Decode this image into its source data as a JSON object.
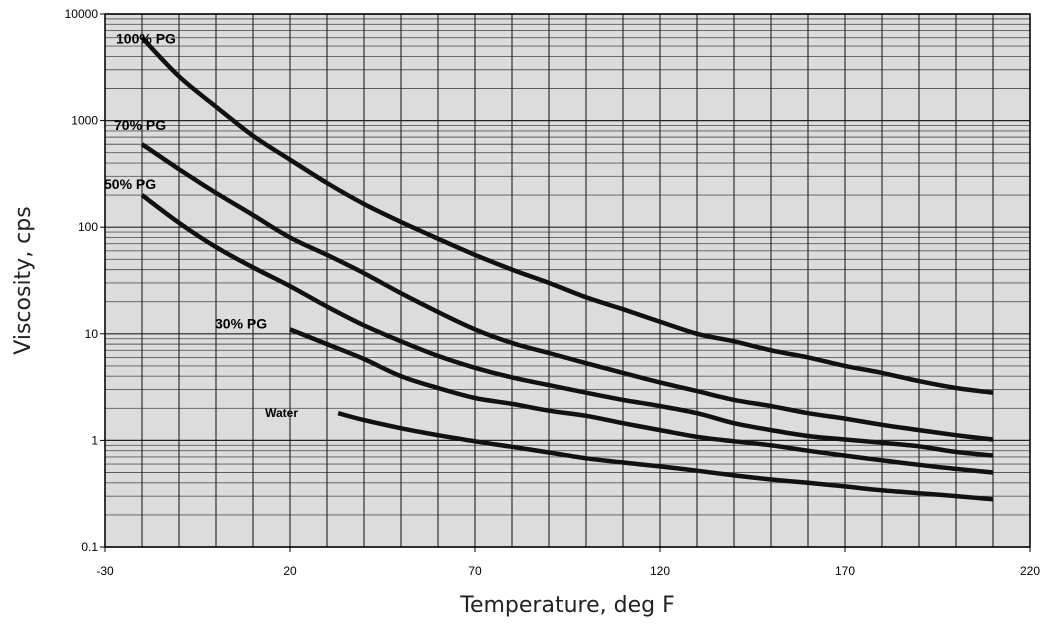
{
  "chart_data": {
    "type": "line",
    "xlabel": "Temperature, deg F",
    "ylabel": "Viscosity, cps",
    "xlim": [
      -30,
      220
    ],
    "ylim": [
      0.1,
      10000
    ],
    "y_scale": "log",
    "grid": true,
    "plot_background": "#dcdcdc",
    "x_tick_labels": [
      "-30",
      "20",
      "70",
      "120",
      "170",
      "220"
    ],
    "x_ticks": [
      -30,
      20,
      70,
      120,
      170,
      220
    ],
    "y_tick_labels": [
      "0.1",
      "1",
      "10",
      "100",
      "1000",
      "10000"
    ],
    "y_ticks": [
      0.1,
      1,
      10,
      100,
      1000,
      10000
    ],
    "series": [
      {
        "name": "100% PG",
        "x": [
          -20,
          -10,
          0,
          10,
          20,
          30,
          40,
          50,
          60,
          70,
          80,
          90,
          100,
          110,
          120,
          130,
          140,
          150,
          160,
          170,
          180,
          190,
          200,
          210
        ],
        "values": [
          6000,
          2600,
          1350,
          720,
          430,
          260,
          165,
          112,
          78,
          55,
          40,
          30,
          22,
          17,
          13,
          10,
          8.5,
          7,
          6,
          5,
          4.3,
          3.6,
          3.1,
          2.8
        ]
      },
      {
        "name": "70% PG",
        "x": [
          -20,
          -10,
          0,
          10,
          20,
          30,
          40,
          50,
          60,
          70,
          80,
          90,
          100,
          110,
          120,
          130,
          140,
          150,
          160,
          170,
          180,
          190,
          200,
          210
        ],
        "values": [
          600,
          350,
          210,
          130,
          80,
          55,
          37,
          24,
          16,
          11,
          8.2,
          6.6,
          5.3,
          4.3,
          3.5,
          2.9,
          2.4,
          2.1,
          1.8,
          1.6,
          1.4,
          1.25,
          1.12,
          1.02
        ]
      },
      {
        "name": "50% PG",
        "x": [
          -20,
          -10,
          0,
          10,
          20,
          30,
          40,
          50,
          60,
          70,
          80,
          90,
          100,
          110,
          120,
          130,
          140,
          150,
          160,
          170,
          180,
          190,
          200,
          210
        ],
        "values": [
          200,
          110,
          65,
          42,
          28,
          18,
          12,
          8.5,
          6.2,
          4.8,
          3.9,
          3.3,
          2.8,
          2.4,
          2.1,
          1.8,
          1.45,
          1.25,
          1.1,
          1.02,
          0.95,
          0.88,
          0.78,
          0.72
        ]
      },
      {
        "name": "30% PG",
        "x": [
          20,
          30,
          40,
          50,
          60,
          70,
          80,
          90,
          100,
          110,
          120,
          130,
          140,
          150,
          160,
          170,
          180,
          190,
          200,
          210
        ],
        "values": [
          11,
          8,
          5.8,
          4,
          3.1,
          2.5,
          2.2,
          1.9,
          1.7,
          1.45,
          1.25,
          1.08,
          0.98,
          0.9,
          0.8,
          0.72,
          0.65,
          0.59,
          0.54,
          0.5
        ]
      },
      {
        "name": "Water",
        "x": [
          33,
          40,
          50,
          60,
          70,
          80,
          90,
          100,
          110,
          120,
          130,
          140,
          150,
          160,
          170,
          180,
          190,
          200,
          210
        ],
        "values": [
          1.8,
          1.55,
          1.3,
          1.12,
          0.98,
          0.87,
          0.77,
          0.68,
          0.62,
          0.57,
          0.52,
          0.47,
          0.43,
          0.4,
          0.37,
          0.34,
          0.32,
          0.3,
          0.28
        ]
      }
    ]
  }
}
